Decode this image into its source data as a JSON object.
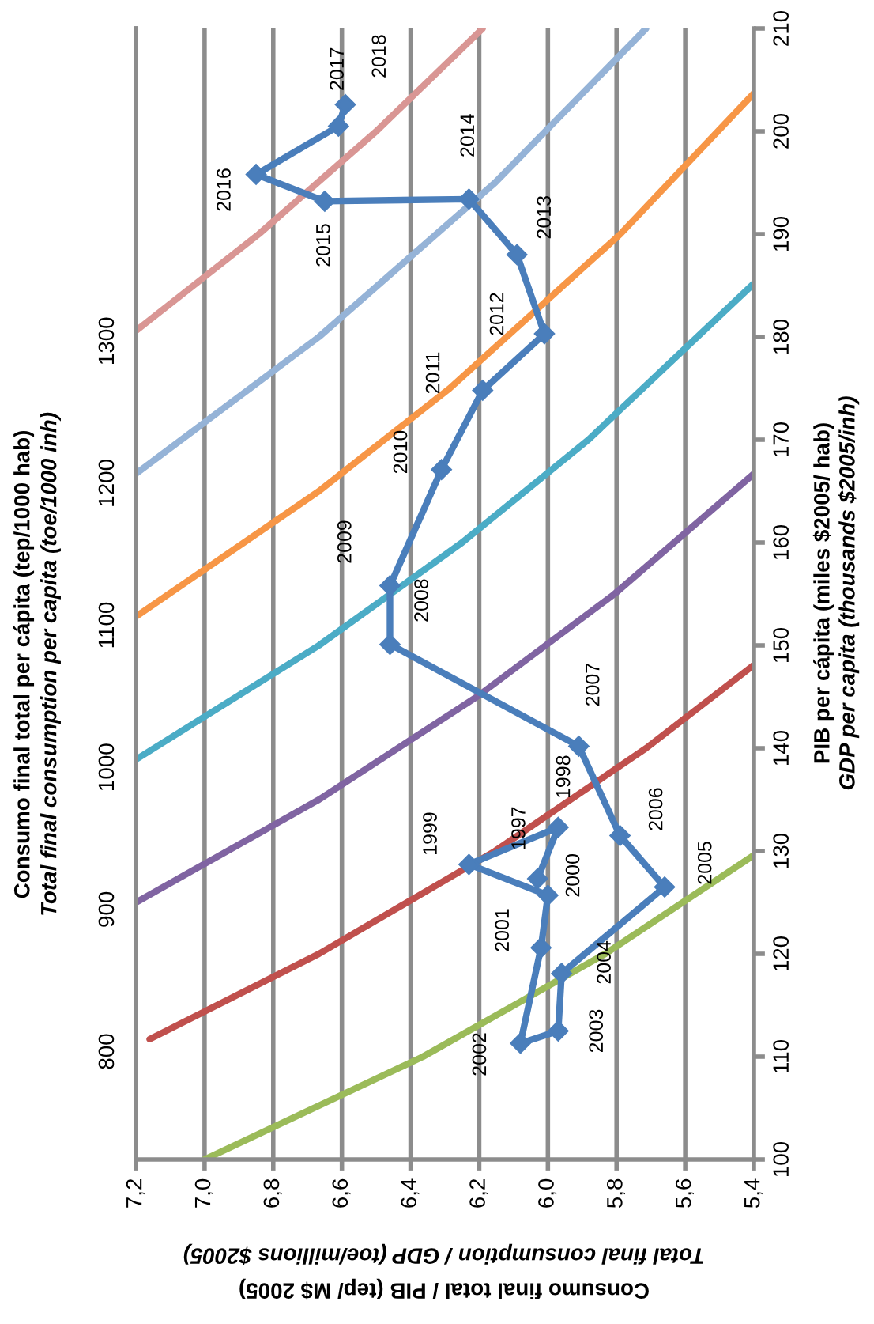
{
  "chart_data": {
    "type": "line",
    "xlabel": "Consumo final total / PIB (tep/ M$ 2005)\nTotal final consumption / GDP (toe/millions $2005)",
    "ylabel": "PIB per cápita (miles $2005/ hab)\nGDP per capita (thousands $2005/inh)",
    "y2label": "Consumo final total per cápita (tep/1000 hab)\nTotal final consumption per capita (toe/1000 inh)",
    "xlim": [
      7.2,
      5.4
    ],
    "xticks": [
      {
        "value": 7.2,
        "label": "7,2"
      },
      {
        "value": 7.0,
        "label": "7,0"
      },
      {
        "value": 6.8,
        "label": "6,8"
      },
      {
        "value": 6.6,
        "label": "6,6"
      },
      {
        "value": 6.4,
        "label": "6,4"
      },
      {
        "value": 6.2,
        "label": "6,2"
      },
      {
        "value": 6.0,
        "label": "6,0"
      },
      {
        "value": 5.8,
        "label": "5,8"
      },
      {
        "value": 5.6,
        "label": "5,6"
      },
      {
        "value": 5.4,
        "label": "5,4"
      }
    ],
    "ylim": [
      100,
      210
    ],
    "yticks": [
      100,
      110,
      120,
      130,
      140,
      150,
      160,
      170,
      180,
      190,
      200,
      210
    ],
    "y2lim": [
      724,
      1520
    ],
    "y2ticks": [
      800,
      900,
      1000,
      1100,
      1200,
      1300
    ],
    "grid": "x",
    "line_style": "solid",
    "series": [
      {
        "color": "#9bbb59",
        "marker": "none",
        "x": [
          7.0,
          6.364,
          5.833,
          5.4
        ],
        "values": [
          100,
          110,
          120,
          129.6
        ]
      },
      {
        "color": "#c0504d",
        "marker": "none",
        "x": [
          7.16,
          6.667,
          6.154,
          5.714,
          5.4
        ],
        "values": [
          111.7,
          120,
          130,
          140,
          148.1
        ]
      },
      {
        "color": "#8064a2",
        "marker": "none",
        "x": [
          7.2,
          6.667,
          6.207,
          5.806,
          5.4
        ],
        "values": [
          125,
          135,
          145,
          155,
          166.7
        ]
      },
      {
        "color": "#4bacc6",
        "marker": "none",
        "x": [
          7.2,
          6.667,
          6.25,
          5.882,
          5.4
        ],
        "values": [
          138.9,
          150,
          160,
          170,
          185.2
        ]
      },
      {
        "color": "#f79646",
        "marker": "none",
        "x": [
          7.2,
          6.667,
          6.286,
          5.789,
          5.4
        ],
        "values": [
          152.8,
          165,
          175,
          190,
          203.7
        ]
      },
      {
        "color": "#95b3d7",
        "marker": "none",
        "x": [
          7.2,
          6.667,
          6.154,
          5.714
        ],
        "values": [
          166.7,
          180,
          195,
          210
        ]
      },
      {
        "color": "#d99694",
        "marker": "none",
        "x": [
          7.2,
          6.842,
          6.5,
          6.19
        ],
        "values": [
          180.6,
          190,
          200,
          210
        ]
      },
      {
        "color": "#4a7ebb",
        "marker": "diamond",
        "x": [
          6.03,
          5.97,
          6.23,
          6.0,
          6.02,
          6.08,
          5.97,
          5.96,
          5.66,
          5.79,
          5.91,
          6.46,
          6.46,
          6.31,
          6.19,
          6.01,
          6.09,
          6.23,
          6.65,
          6.85,
          6.61,
          6.59
        ],
        "values": [
          127.3,
          132.3,
          128.7,
          125.7,
          120.6,
          111.3,
          112.5,
          118.1,
          126.5,
          131.5,
          140.2,
          150.1,
          155.8,
          167.1,
          174.8,
          180.3,
          188.0,
          193.4,
          193.2,
          195.8,
          200.5,
          202.6
        ]
      }
    ],
    "annotations": [
      {
        "text": "1997",
        "x": 6.03,
        "y": 127.3
      },
      {
        "text": "1998",
        "x": 5.97,
        "y": 132.3
      },
      {
        "text": "1999",
        "x": 6.23,
        "y": 128.7
      },
      {
        "text": "2000",
        "x": 6.0,
        "y": 125.7
      },
      {
        "text": "2001",
        "x": 6.02,
        "y": 120.6
      },
      {
        "text": "2002",
        "x": 6.08,
        "y": 111.3
      },
      {
        "text": "2003",
        "x": 5.97,
        "y": 112.5
      },
      {
        "text": "2004",
        "x": 5.96,
        "y": 118.1
      },
      {
        "text": "2005",
        "x": 5.66,
        "y": 126.5
      },
      {
        "text": "2006",
        "x": 5.79,
        "y": 131.5
      },
      {
        "text": "2007",
        "x": 5.91,
        "y": 140.2
      },
      {
        "text": "2008",
        "x": 6.46,
        "y": 150.1
      },
      {
        "text": "2009",
        "x": 6.46,
        "y": 155.8
      },
      {
        "text": "2010",
        "x": 6.31,
        "y": 167.1
      },
      {
        "text": "2011",
        "x": 6.19,
        "y": 174.8
      },
      {
        "text": "2012",
        "x": 6.01,
        "y": 180.3
      },
      {
        "text": "2013",
        "x": 6.09,
        "y": 188.0
      },
      {
        "text": "2014",
        "x": 6.23,
        "y": 193.4
      },
      {
        "text": "2015",
        "x": 6.65,
        "y": 193.2
      },
      {
        "text": "2016",
        "x": 6.85,
        "y": 195.8
      },
      {
        "text": "2017",
        "x": 6.61,
        "y": 200.5
      },
      {
        "text": "2018",
        "x": 6.59,
        "y": 202.6
      }
    ]
  }
}
